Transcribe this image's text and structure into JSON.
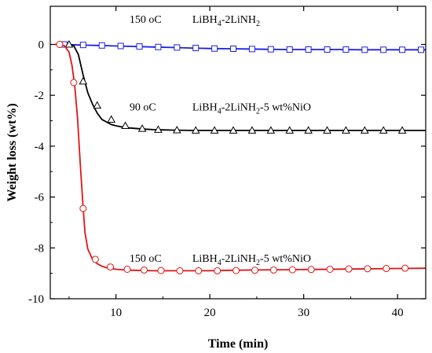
{
  "chart_data": {
    "type": "line",
    "xlabel": "Time (min)",
    "ylabel": "Weight loss (wt%)",
    "xlim": [
      3,
      43
    ],
    "ylim": [
      -10,
      1.5
    ],
    "xticks": [
      10,
      20,
      30,
      40
    ],
    "yticks": [
      0,
      -2,
      -4,
      -6,
      -8,
      -10
    ],
    "grid": false,
    "annotations": [
      {
        "temp": "150",
        "unit": "oC",
        "formula": [
          "LiBH",
          "4",
          "-2LiNH",
          "2",
          ""
        ],
        "x": 26.5,
        "y": 0.85
      },
      {
        "temp": "90",
        "unit": "oC",
        "formula": [
          "LiBH",
          "4",
          "-2LiNH",
          "2",
          "-5 wt%NiO"
        ],
        "x": 26.5,
        "y": -2.6
      },
      {
        "temp": "150",
        "unit": "oC",
        "formula": [
          "LiBH",
          "4",
          "-2LiNH",
          "2",
          "-5 wt%NiO"
        ],
        "x": 26.5,
        "y": -8.55
      }
    ],
    "series": [
      {
        "color": "#1f1fe0",
        "marker": "square",
        "x": [
          3.5,
          4,
          5,
          6,
          7,
          8,
          9,
          10,
          12,
          14,
          16,
          18,
          20,
          22,
          24,
          26,
          28,
          30,
          32,
          34,
          36,
          38,
          40,
          42,
          43
        ],
        "y": [
          0.0,
          0.0,
          -0.01,
          -0.02,
          -0.03,
          -0.04,
          -0.05,
          -0.06,
          -0.08,
          -0.1,
          -0.12,
          -0.14,
          -0.16,
          -0.17,
          -0.18,
          -0.19,
          -0.2,
          -0.2,
          -0.2,
          -0.2,
          -0.21,
          -0.21,
          -0.21,
          -0.21,
          -0.21
        ],
        "markers_x": [
          4.5,
          6.5,
          8.5,
          10.5,
          12.5,
          14.5,
          16.5,
          18.5,
          20.5,
          22.5,
          24.5,
          26.5,
          28.5,
          30.5,
          32.5,
          34.5,
          36.5,
          38.5,
          40.5,
          42.5
        ],
        "markers_y": [
          0.0,
          -0.02,
          -0.04,
          -0.06,
          -0.08,
          -0.1,
          -0.12,
          -0.14,
          -0.16,
          -0.17,
          -0.18,
          -0.19,
          -0.2,
          -0.2,
          -0.2,
          -0.2,
          -0.21,
          -0.21,
          -0.21,
          -0.21
        ]
      },
      {
        "color": "#000000",
        "marker": "triangle",
        "x": [
          5,
          5.5,
          6,
          6.5,
          7,
          7.5,
          8,
          8.5,
          9,
          9.5,
          10,
          11,
          12,
          13,
          14,
          15,
          16,
          18,
          20,
          25,
          30,
          35,
          40,
          43
        ],
        "y": [
          0.0,
          -0.05,
          -0.4,
          -1.2,
          -1.9,
          -2.35,
          -2.7,
          -2.95,
          -3.05,
          -3.15,
          -3.2,
          -3.27,
          -3.3,
          -3.33,
          -3.35,
          -3.36,
          -3.37,
          -3.38,
          -3.38,
          -3.38,
          -3.38,
          -3.38,
          -3.38,
          -3.38
        ],
        "markers_x": [
          5.0,
          6.5,
          8.0,
          9.5,
          11.0,
          12.8,
          14.5,
          16.5,
          18.5,
          20.5,
          22.5,
          24.5,
          26.5,
          28.5,
          30.5,
          32.5,
          34.5,
          36.5,
          38.5,
          40.5
        ],
        "markers_y": [
          0.0,
          -1.45,
          -2.4,
          -2.95,
          -3.2,
          -3.31,
          -3.35,
          -3.37,
          -3.38,
          -3.38,
          -3.38,
          -3.38,
          -3.38,
          -3.38,
          -3.38,
          -3.38,
          -3.38,
          -3.38,
          -3.38,
          -3.38
        ]
      },
      {
        "color": "#e01414",
        "marker": "circle",
        "x": [
          3.5,
          4,
          4.5,
          5,
          5.3,
          5.6,
          5.9,
          6.2,
          6.5,
          6.7,
          7,
          7.5,
          8,
          8.5,
          9,
          10,
          11,
          12,
          14,
          16,
          18,
          20,
          22,
          25,
          28,
          30,
          35,
          40,
          43
        ],
        "y": [
          0.0,
          0.0,
          -0.05,
          -0.3,
          -0.8,
          -1.6,
          -2.9,
          -4.7,
          -6.4,
          -7.4,
          -8.05,
          -8.45,
          -8.62,
          -8.72,
          -8.78,
          -8.84,
          -8.87,
          -8.88,
          -8.9,
          -8.9,
          -8.9,
          -8.9,
          -8.88,
          -8.87,
          -8.86,
          -8.85,
          -8.83,
          -8.81,
          -8.8
        ],
        "markers_x": [
          4.0,
          5.5,
          6.5,
          7.8,
          9.4,
          11.2,
          13.0,
          14.8,
          16.8,
          18.8,
          20.8,
          22.8,
          24.8,
          26.8,
          28.8,
          30.8,
          32.8,
          34.8,
          36.8,
          38.8,
          40.8
        ],
        "markers_y": [
          0.0,
          -1.5,
          -6.45,
          -8.45,
          -8.75,
          -8.84,
          -8.87,
          -8.89,
          -8.9,
          -8.9,
          -8.9,
          -8.89,
          -8.88,
          -8.87,
          -8.86,
          -8.85,
          -8.84,
          -8.83,
          -8.82,
          -8.81,
          -8.8
        ]
      }
    ]
  }
}
